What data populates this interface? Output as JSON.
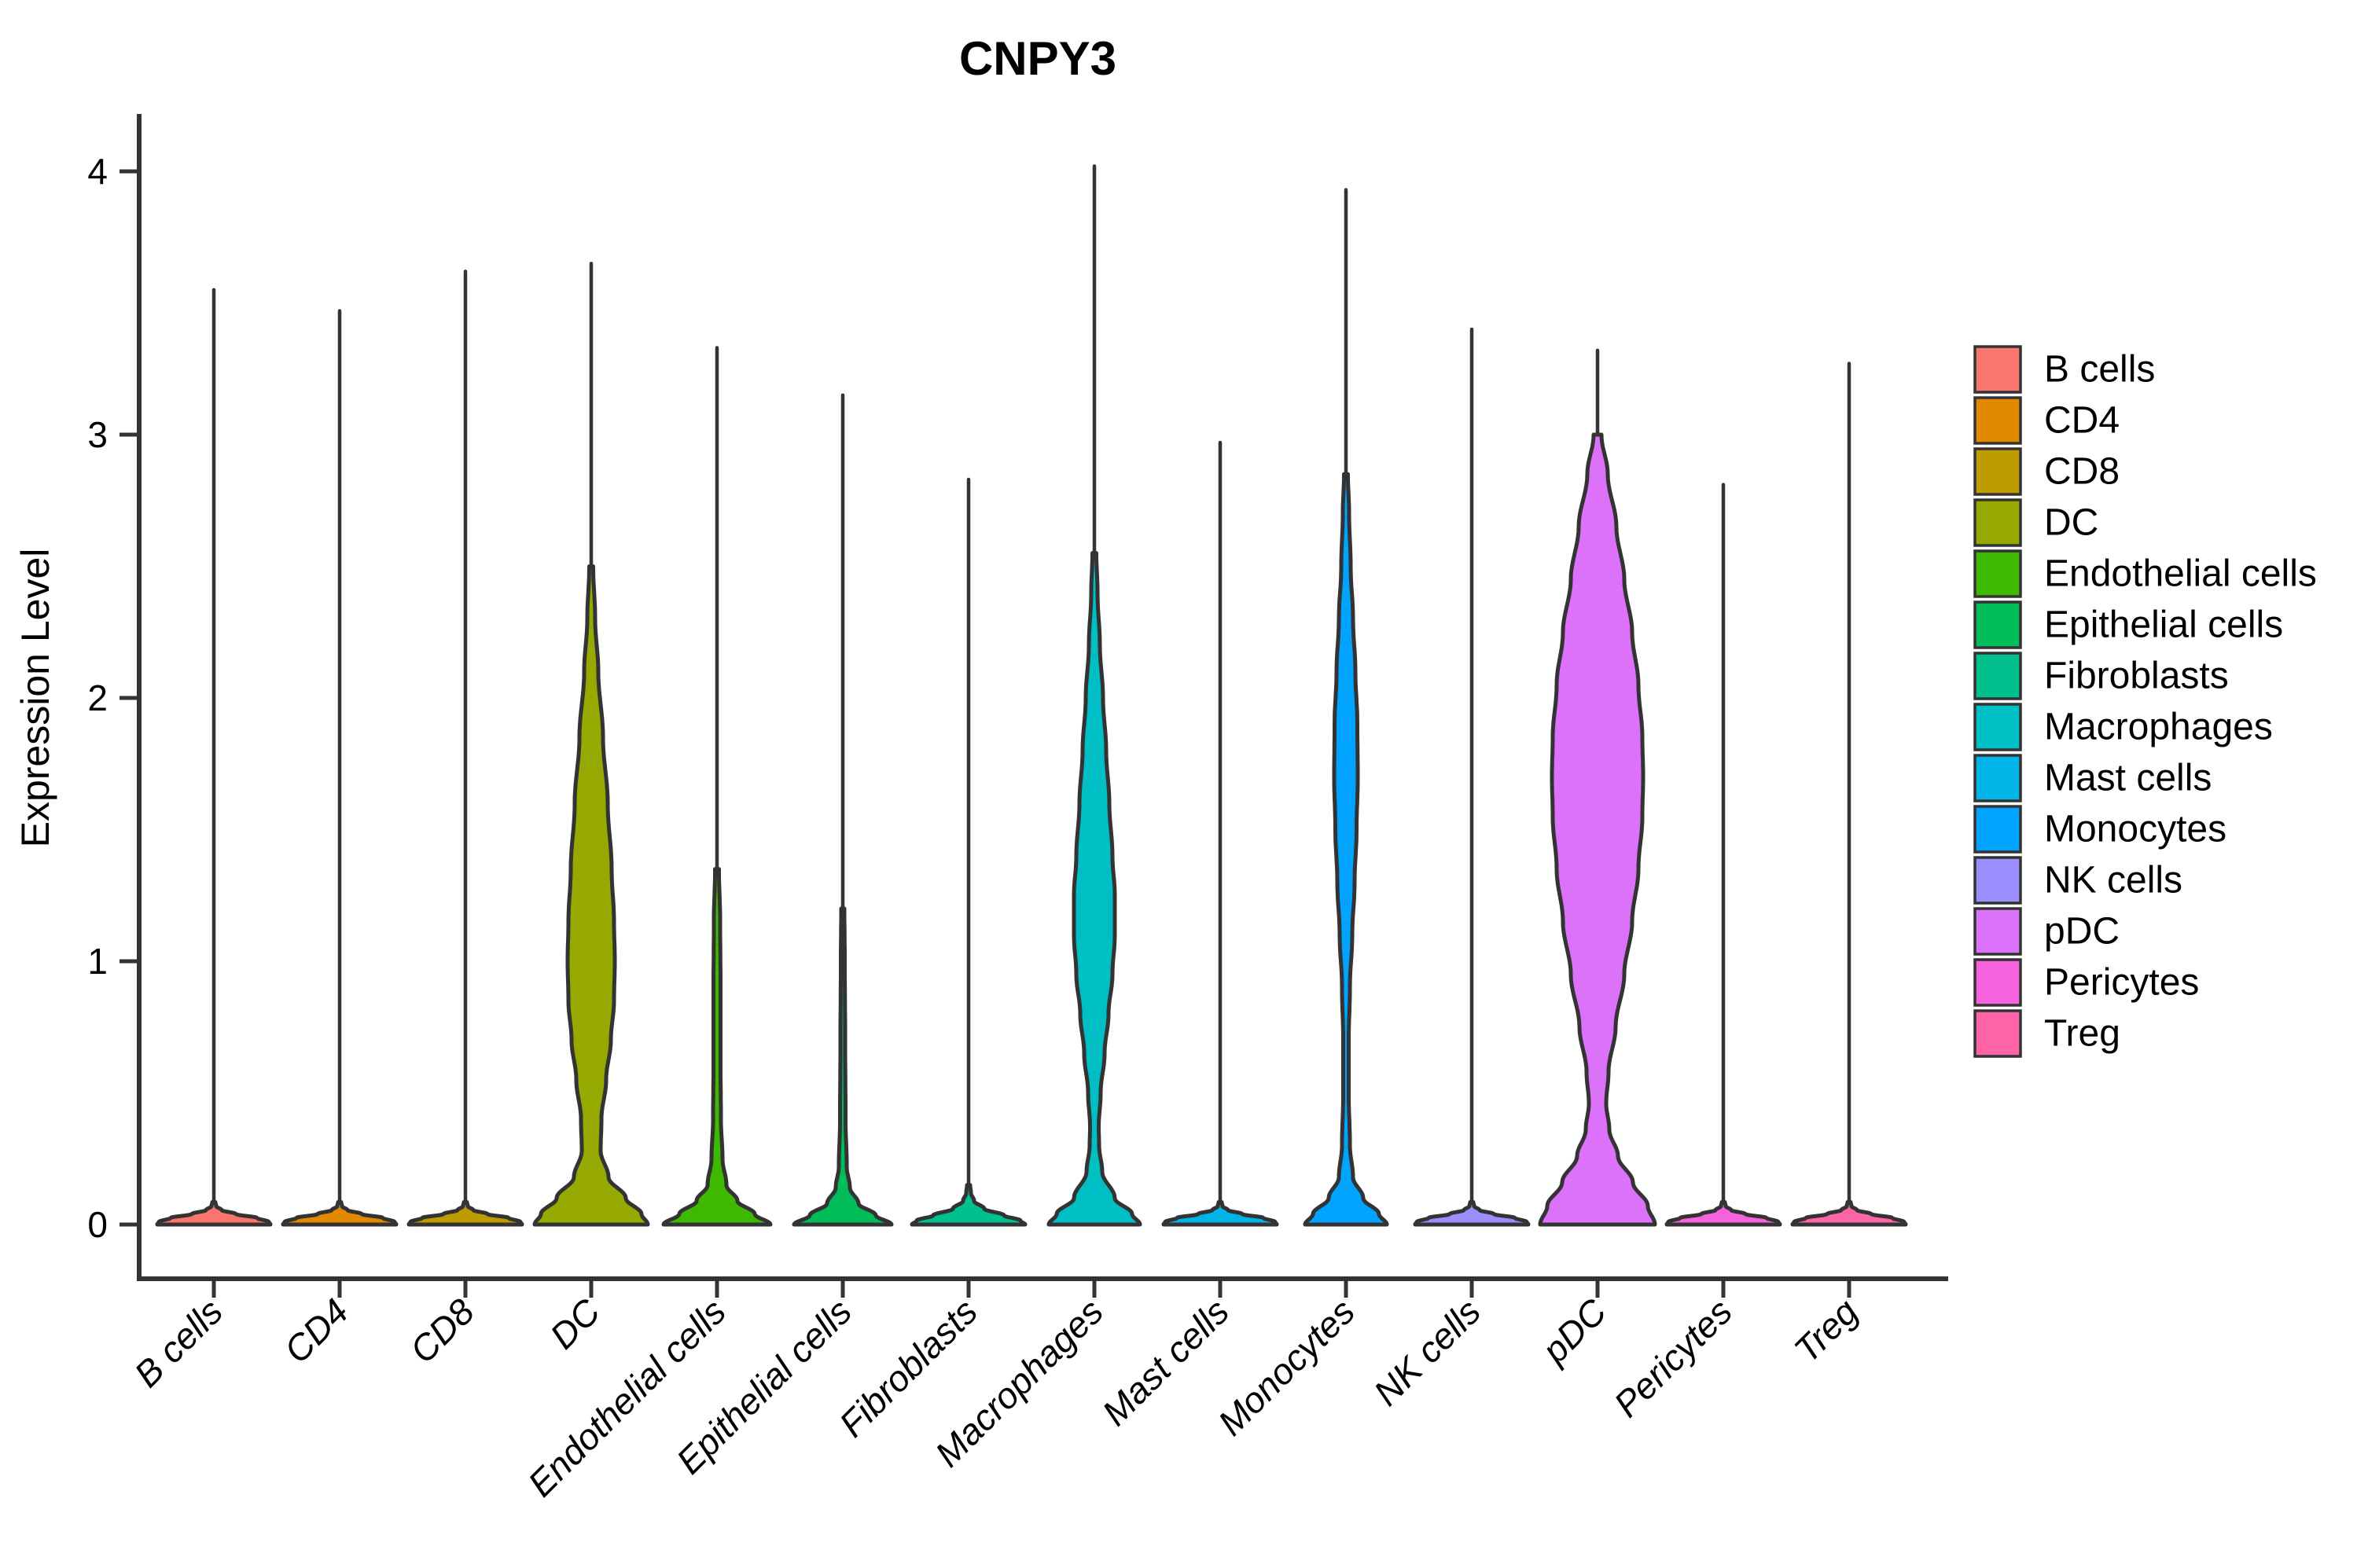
{
  "chart_data": {
    "type": "violin",
    "title": "CNPY3",
    "xlabel": "",
    "ylabel": "Expression Level",
    "yticks": [
      0,
      1,
      2,
      3,
      4
    ],
    "ylim": [
      0,
      4.15
    ],
    "grid": "off",
    "legend_position": "right",
    "axis_color": "#333333",
    "categories": [
      "B cells",
      "CD4",
      "CD8",
      "DC",
      "Endothelial cells",
      "Epithelial cells",
      "Fibroblasts",
      "Macrophages",
      "Mast cells",
      "Monocytes",
      "NK cells",
      "pDC",
      "Pericytes",
      "Treg"
    ],
    "series": [
      {
        "name": "B cells",
        "color": "#F8766D",
        "max_expression": 3.55,
        "width_profile": [
          [
            0,
            72
          ],
          [
            0.01,
            70
          ],
          [
            0.025,
            55
          ],
          [
            0.04,
            28
          ],
          [
            0.055,
            10
          ],
          [
            0.07,
            3
          ],
          [
            0.085,
            2
          ]
        ]
      },
      {
        "name": "CD4",
        "color": "#E18A00",
        "max_expression": 3.47,
        "width_profile": [
          [
            0,
            72
          ],
          [
            0.01,
            70
          ],
          [
            0.025,
            55
          ],
          [
            0.04,
            28
          ],
          [
            0.055,
            10
          ],
          [
            0.07,
            3
          ],
          [
            0.085,
            2
          ]
        ]
      },
      {
        "name": "CD8",
        "color": "#BE9C00",
        "max_expression": 3.62,
        "width_profile": [
          [
            0,
            72
          ],
          [
            0.01,
            70
          ],
          [
            0.025,
            55
          ],
          [
            0.04,
            28
          ],
          [
            0.055,
            10
          ],
          [
            0.07,
            3
          ],
          [
            0.085,
            2
          ]
        ]
      },
      {
        "name": "DC",
        "color": "#95A900",
        "max_expression": 3.65,
        "width_profile": [
          [
            0,
            72
          ],
          [
            0.04,
            64
          ],
          [
            0.1,
            44
          ],
          [
            0.18,
            22
          ],
          [
            0.28,
            12
          ],
          [
            0.4,
            13
          ],
          [
            0.55,
            19
          ],
          [
            0.7,
            25
          ],
          [
            0.85,
            29
          ],
          [
            1.0,
            30
          ],
          [
            1.15,
            29
          ],
          [
            1.35,
            26
          ],
          [
            1.6,
            21
          ],
          [
            1.85,
            15
          ],
          [
            2.1,
            9
          ],
          [
            2.3,
            5
          ],
          [
            2.5,
            2.5
          ]
        ]
      },
      {
        "name": "Endothelial cells",
        "color": "#3FB800",
        "max_expression": 3.33,
        "width_profile": [
          [
            0,
            68
          ],
          [
            0.04,
            48
          ],
          [
            0.09,
            26
          ],
          [
            0.15,
            12
          ],
          [
            0.25,
            7
          ],
          [
            0.4,
            5
          ],
          [
            0.6,
            4.5
          ],
          [
            0.9,
            4.5
          ],
          [
            1.15,
            4
          ],
          [
            1.35,
            2.5
          ]
        ]
      },
      {
        "name": "Epithelial cells",
        "color": "#00BC59",
        "max_expression": 3.15,
        "width_profile": [
          [
            0,
            62
          ],
          [
            0.035,
            42
          ],
          [
            0.08,
            20
          ],
          [
            0.14,
            9
          ],
          [
            0.22,
            5
          ],
          [
            0.4,
            3.5
          ],
          [
            0.7,
            3
          ],
          [
            1.0,
            2.5
          ],
          [
            1.2,
            2
          ]
        ]
      },
      {
        "name": "Fibroblasts",
        "color": "#00C08E",
        "max_expression": 2.83,
        "width_profile": [
          [
            0,
            72
          ],
          [
            0.015,
            66
          ],
          [
            0.035,
            45
          ],
          [
            0.06,
            20
          ],
          [
            0.09,
            7
          ],
          [
            0.12,
            3
          ],
          [
            0.15,
            2
          ]
        ]
      },
      {
        "name": "Macrophages",
        "color": "#00BFC4",
        "max_expression": 4.02,
        "width_profile": [
          [
            0,
            58
          ],
          [
            0.04,
            48
          ],
          [
            0.1,
            26
          ],
          [
            0.2,
            10
          ],
          [
            0.3,
            6
          ],
          [
            0.37,
            5.5
          ],
          [
            0.5,
            8
          ],
          [
            0.65,
            13
          ],
          [
            0.8,
            18
          ],
          [
            0.95,
            23
          ],
          [
            1.1,
            26
          ],
          [
            1.25,
            26
          ],
          [
            1.4,
            23
          ],
          [
            1.6,
            19
          ],
          [
            1.8,
            15
          ],
          [
            2.0,
            11
          ],
          [
            2.2,
            7
          ],
          [
            2.4,
            4
          ],
          [
            2.55,
            2.5
          ]
        ]
      },
      {
        "name": "Mast cells",
        "color": "#00B4E8",
        "max_expression": 2.97,
        "width_profile": [
          [
            0,
            72
          ],
          [
            0.01,
            70
          ],
          [
            0.025,
            55
          ],
          [
            0.04,
            28
          ],
          [
            0.055,
            10
          ],
          [
            0.07,
            3
          ],
          [
            0.085,
            2
          ]
        ]
      },
      {
        "name": "Monocytes",
        "color": "#00A3FF",
        "max_expression": 3.93,
        "width_profile": [
          [
            0,
            52
          ],
          [
            0.04,
            42
          ],
          [
            0.1,
            22
          ],
          [
            0.18,
            9
          ],
          [
            0.3,
            5
          ],
          [
            0.5,
            3.5
          ],
          [
            0.7,
            3.5
          ],
          [
            0.9,
            5
          ],
          [
            1.1,
            8
          ],
          [
            1.3,
            11
          ],
          [
            1.5,
            13.5
          ],
          [
            1.7,
            15
          ],
          [
            1.9,
            14.5
          ],
          [
            2.1,
            12
          ],
          [
            2.3,
            9
          ],
          [
            2.5,
            6
          ],
          [
            2.7,
            4
          ],
          [
            2.85,
            2.5
          ]
        ]
      },
      {
        "name": "NK cells",
        "color": "#9B8FFF",
        "max_expression": 3.4,
        "width_profile": [
          [
            0,
            72
          ],
          [
            0.01,
            70
          ],
          [
            0.025,
            55
          ],
          [
            0.04,
            28
          ],
          [
            0.055,
            10
          ],
          [
            0.07,
            3
          ],
          [
            0.085,
            2
          ]
        ]
      },
      {
        "name": "pDC",
        "color": "#DC71FA",
        "max_expression": 3.32,
        "width_profile": [
          [
            0,
            73
          ],
          [
            0.07,
            64
          ],
          [
            0.16,
            45
          ],
          [
            0.26,
            26
          ],
          [
            0.36,
            15
          ],
          [
            0.46,
            11
          ],
          [
            0.58,
            14
          ],
          [
            0.75,
            23
          ],
          [
            0.95,
            34
          ],
          [
            1.15,
            44
          ],
          [
            1.35,
            52
          ],
          [
            1.55,
            57
          ],
          [
            1.7,
            58
          ],
          [
            1.85,
            57
          ],
          [
            2.05,
            52
          ],
          [
            2.25,
            44
          ],
          [
            2.45,
            34
          ],
          [
            2.65,
            24
          ],
          [
            2.85,
            13
          ],
          [
            3.0,
            5
          ]
        ]
      },
      {
        "name": "Pericytes",
        "color": "#F763DF",
        "max_expression": 2.81,
        "width_profile": [
          [
            0,
            72
          ],
          [
            0.01,
            70
          ],
          [
            0.025,
            55
          ],
          [
            0.04,
            28
          ],
          [
            0.055,
            10
          ],
          [
            0.07,
            3
          ],
          [
            0.085,
            2
          ]
        ]
      },
      {
        "name": "Treg",
        "color": "#FF64A8",
        "max_expression": 3.27,
        "width_profile": [
          [
            0,
            72
          ],
          [
            0.01,
            70
          ],
          [
            0.025,
            55
          ],
          [
            0.04,
            28
          ],
          [
            0.055,
            10
          ],
          [
            0.07,
            3
          ],
          [
            0.085,
            2
          ]
        ]
      }
    ],
    "legend": [
      {
        "label": "B cells",
        "color": "#F8766D"
      },
      {
        "label": "CD4",
        "color": "#E18A00"
      },
      {
        "label": "CD8",
        "color": "#BE9C00"
      },
      {
        "label": "DC",
        "color": "#95A900"
      },
      {
        "label": "Endothelial cells",
        "color": "#3FB800"
      },
      {
        "label": "Epithelial cells",
        "color": "#00BC59"
      },
      {
        "label": "Fibroblasts",
        "color": "#00C08E"
      },
      {
        "label": "Macrophages",
        "color": "#00BFC4"
      },
      {
        "label": "Mast cells",
        "color": "#00B4E8"
      },
      {
        "label": "Monocytes",
        "color": "#00A3FF"
      },
      {
        "label": "NK cells",
        "color": "#9B8FFF"
      },
      {
        "label": "pDC",
        "color": "#DC71FA"
      },
      {
        "label": "Pericytes",
        "color": "#F763DF"
      },
      {
        "label": "Treg",
        "color": "#FF64A8"
      }
    ]
  }
}
